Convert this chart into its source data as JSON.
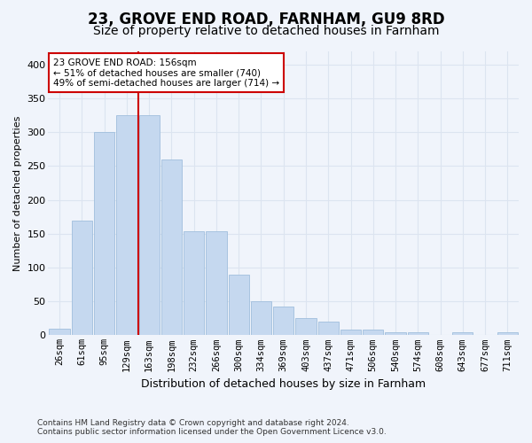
{
  "title": "23, GROVE END ROAD, FARNHAM, GU9 8RD",
  "subtitle": "Size of property relative to detached houses in Farnham",
  "xlabel": "Distribution of detached houses by size in Farnham",
  "ylabel": "Number of detached properties",
  "footer_line1": "Contains HM Land Registry data © Crown copyright and database right 2024.",
  "footer_line2": "Contains public sector information licensed under the Open Government Licence v3.0.",
  "bar_labels": [
    "26sqm",
    "61sqm",
    "95sqm",
    "129sqm",
    "163sqm",
    "198sqm",
    "232sqm",
    "266sqm",
    "300sqm",
    "334sqm",
    "369sqm",
    "403sqm",
    "437sqm",
    "471sqm",
    "506sqm",
    "540sqm",
    "574sqm",
    "608sqm",
    "643sqm",
    "677sqm",
    "711sqm"
  ],
  "bar_heights": [
    10,
    170,
    300,
    325,
    325,
    260,
    153,
    153,
    90,
    50,
    42,
    25,
    20,
    8,
    8,
    4,
    4,
    0,
    4,
    0,
    4
  ],
  "bar_color": "#c5d8ef",
  "bar_edgecolor": "#a0bedd",
  "grid_color": "#dce4f0",
  "vline_color": "#cc0000",
  "vline_x": 3.5,
  "annotation_text": "23 GROVE END ROAD: 156sqm\n← 51% of detached houses are smaller (740)\n49% of semi-detached houses are larger (714) →",
  "annotation_box_edgecolor": "#cc0000",
  "annotation_box_facecolor": "#ffffff",
  "ylim": [
    0,
    420
  ],
  "yticks": [
    0,
    50,
    100,
    150,
    200,
    250,
    300,
    350,
    400
  ],
  "bg_color": "#f0f4fb",
  "title_fontsize": 12,
  "subtitle_fontsize": 10,
  "ylabel_fontsize": 8,
  "xlabel_fontsize": 9,
  "tick_fontsize": 7.5,
  "annotation_fontsize": 7.5,
  "footer_fontsize": 6.5
}
